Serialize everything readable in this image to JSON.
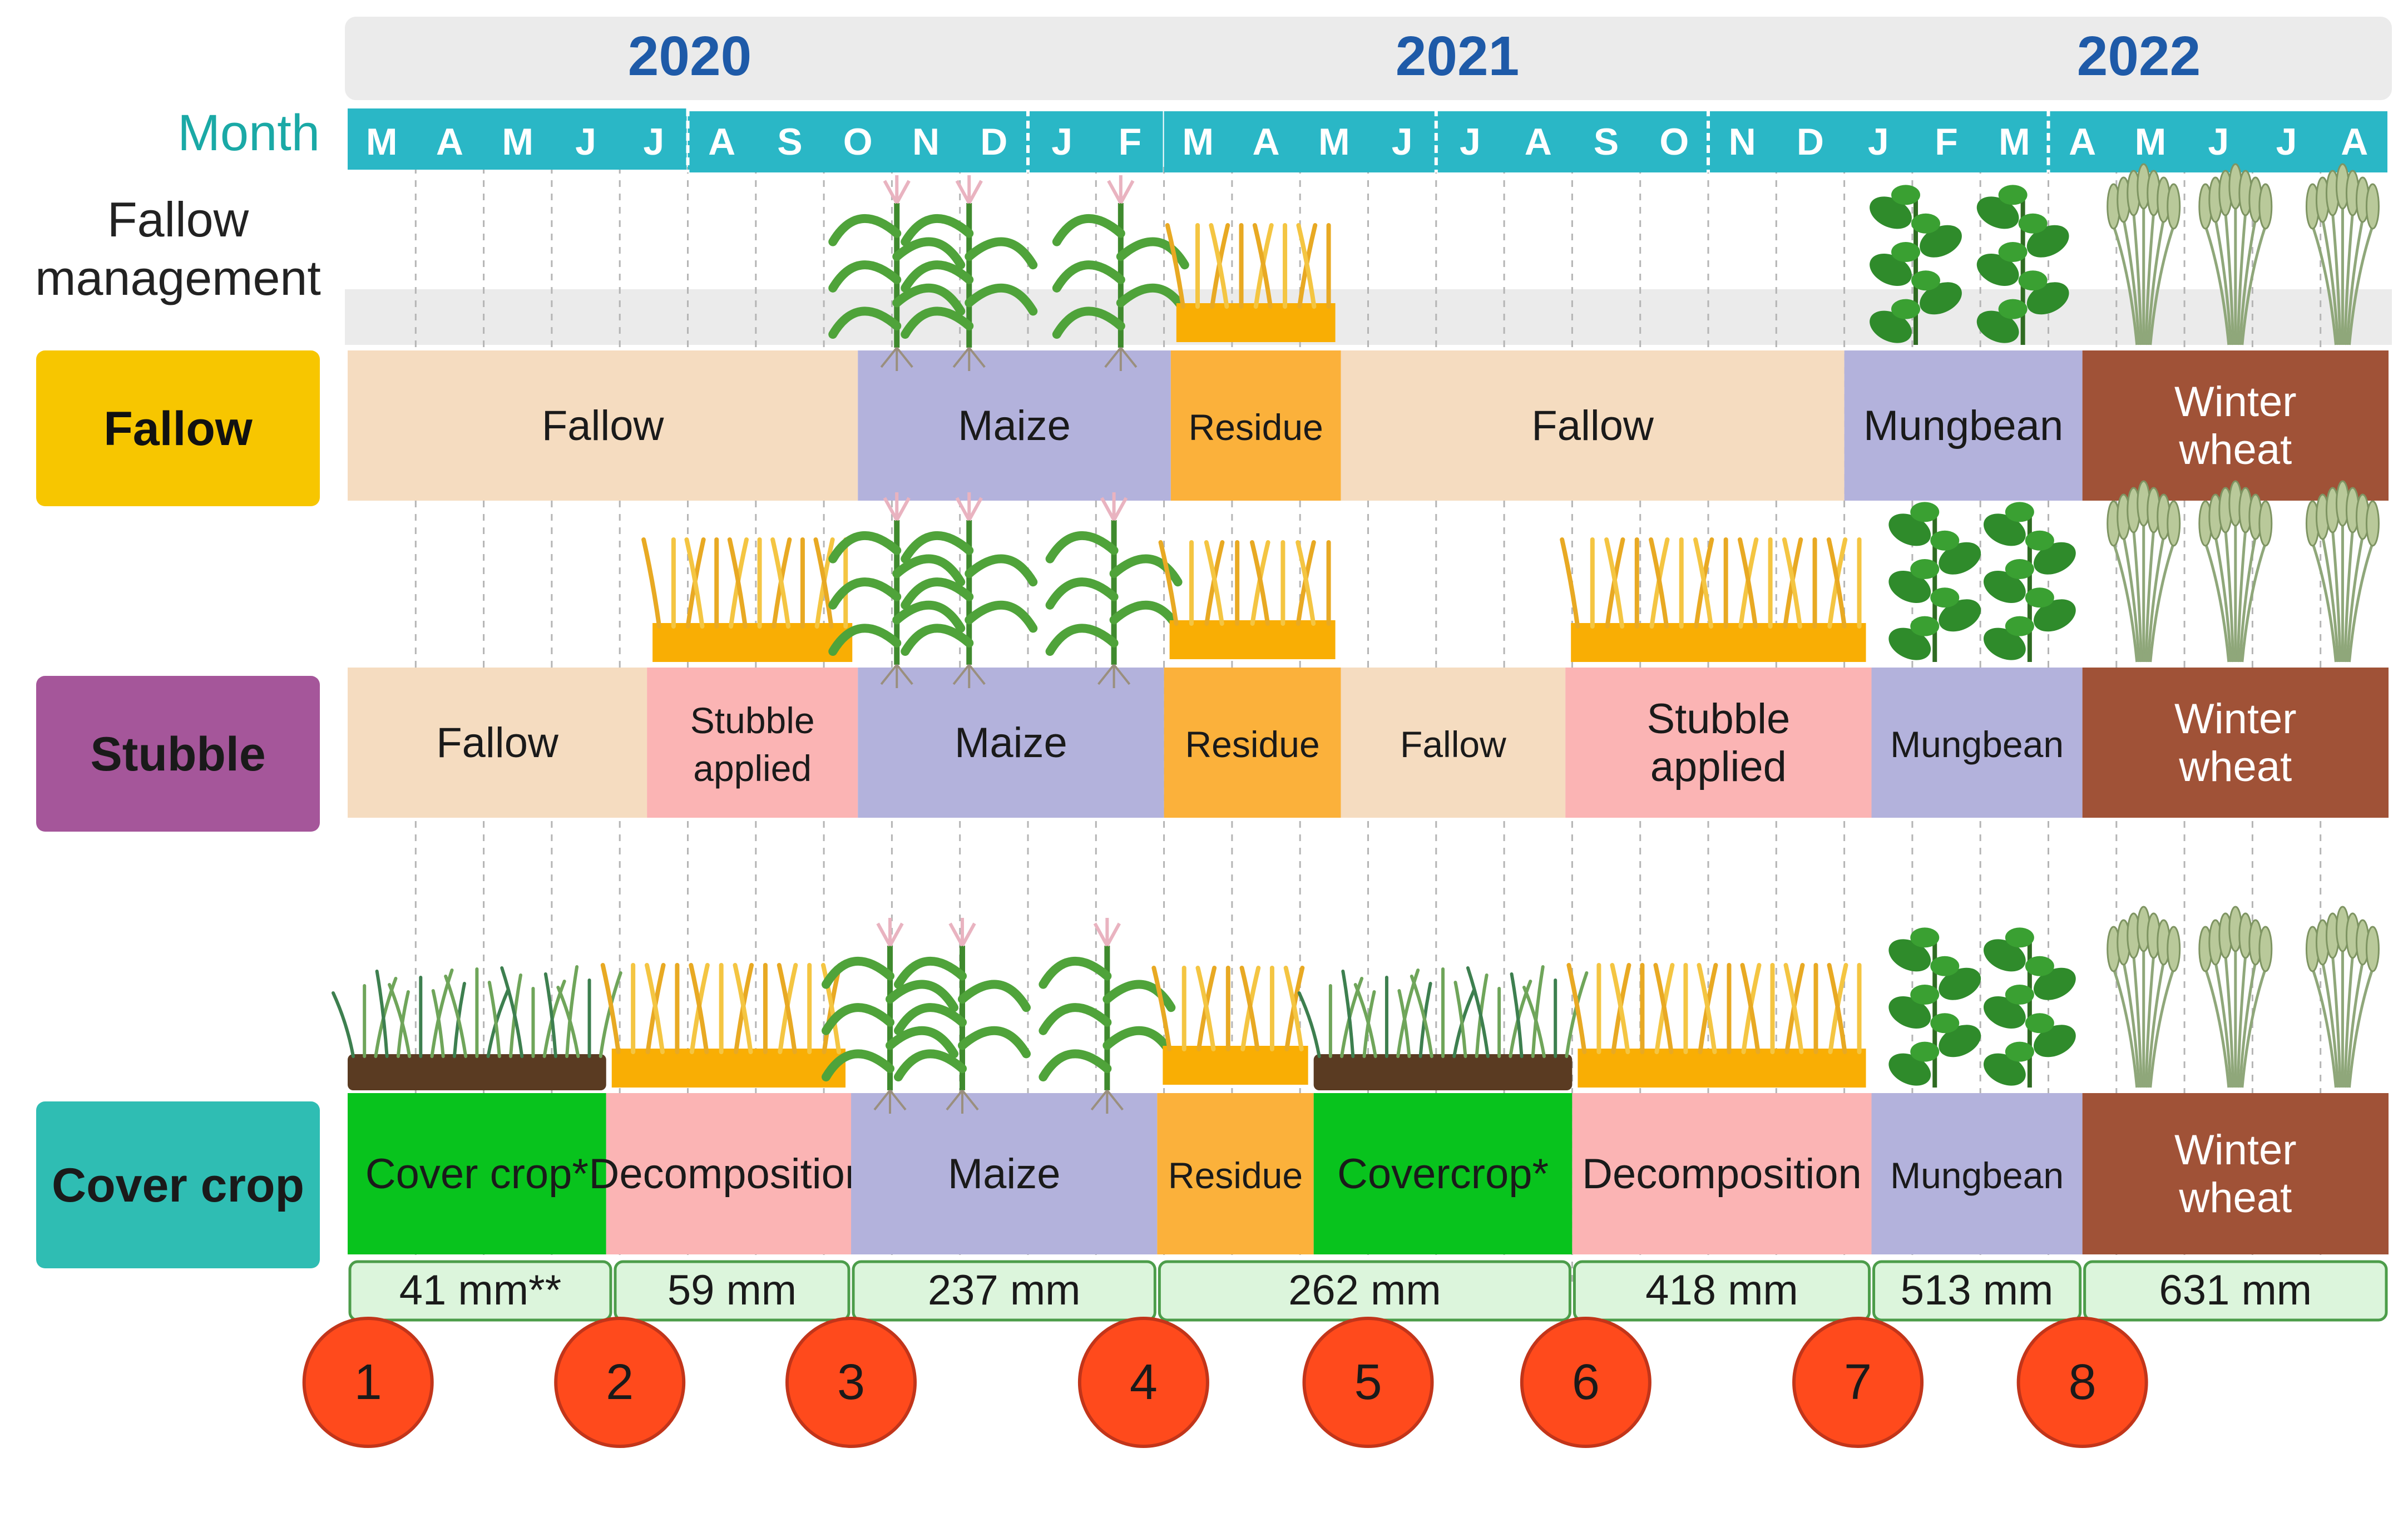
{
  "years": [
    "2020",
    "2021",
    "2022"
  ],
  "month_heading": "Month",
  "management_heading": [
    "Fallow",
    "management"
  ],
  "months": [
    "M",
    "A",
    "M",
    "J",
    "J",
    "A",
    "S",
    "O",
    "N",
    "D",
    "J",
    "F",
    "M",
    "A",
    "M",
    "J",
    "J",
    "A",
    "S",
    "O",
    "N",
    "D",
    "J",
    "F",
    "M",
    "A",
    "M",
    "J",
    "J",
    "A"
  ],
  "treatments": [
    {
      "label": "Fallow",
      "label_color": "#f7c600",
      "phases": [
        {
          "lines": [
            "Fallow"
          ],
          "type": "fallow",
          "start": 0,
          "end": 7.5
        },
        {
          "lines": [
            "Maize"
          ],
          "type": "crop",
          "start": 7.5,
          "end": 12.1
        },
        {
          "lines": [
            "Residue"
          ],
          "type": "residue",
          "start": 12.1,
          "end": 14.6
        },
        {
          "lines": [
            "Fallow"
          ],
          "type": "fallow",
          "start": 14.6,
          "end": 22
        },
        {
          "lines": [
            "Mungbean"
          ],
          "type": "crop",
          "start": 22,
          "end": 25.5
        },
        {
          "lines": [
            "Winter",
            "wheat"
          ],
          "type": "wheat",
          "start": 25.5,
          "end": 30
        }
      ]
    },
    {
      "label": "Stubble",
      "label_color": "#a5569a",
      "phases": [
        {
          "lines": [
            "Fallow"
          ],
          "type": "fallow",
          "start": 0,
          "end": 4.4
        },
        {
          "lines": [
            "Stubble",
            "applied"
          ],
          "type": "decomp",
          "start": 4.4,
          "end": 7.5
        },
        {
          "lines": [
            "Maize"
          ],
          "type": "crop",
          "start": 7.5,
          "end": 12
        },
        {
          "lines": [
            "Residue"
          ],
          "type": "residue",
          "start": 12,
          "end": 14.6
        },
        {
          "lines": [
            "Fallow"
          ],
          "type": "fallow",
          "start": 14.6,
          "end": 17.9
        },
        {
          "lines": [
            "Stubble",
            "applied"
          ],
          "type": "decomp",
          "start": 17.9,
          "end": 22.4
        },
        {
          "lines": [
            "Mungbean"
          ],
          "type": "crop",
          "start": 22.4,
          "end": 25.5
        },
        {
          "lines": [
            "Winter",
            "wheat"
          ],
          "type": "wheat",
          "start": 25.5,
          "end": 30
        }
      ]
    },
    {
      "label": "Cover crop",
      "label_color": "#2fbdb3",
      "phases": [
        {
          "lines": [
            "Cover crop*"
          ],
          "type": "cover",
          "start": 0,
          "end": 3.8
        },
        {
          "lines": [
            "Decomposition"
          ],
          "type": "decomp",
          "start": 3.8,
          "end": 7.4
        },
        {
          "lines": [
            "Maize"
          ],
          "type": "crop",
          "start": 7.4,
          "end": 11.9
        },
        {
          "lines": [
            "Residue"
          ],
          "type": "residue",
          "start": 11.9,
          "end": 14.2
        },
        {
          "lines": [
            "Covercrop*"
          ],
          "type": "cover",
          "start": 14.2,
          "end": 18
        },
        {
          "lines": [
            "Decomposition"
          ],
          "type": "decomp",
          "start": 18,
          "end": 22.4
        },
        {
          "lines": [
            "Mungbean"
          ],
          "type": "crop",
          "start": 22.4,
          "end": 25.5
        },
        {
          "lines": [
            "Winter",
            "wheat"
          ],
          "type": "wheat",
          "start": 25.5,
          "end": 30
        }
      ]
    }
  ],
  "rainfall": [
    {
      "label": "41 mm**",
      "start": 0,
      "end": 3.9
    },
    {
      "label": "59 mm",
      "start": 3.9,
      "end": 7.4
    },
    {
      "label": "237 mm",
      "start": 7.4,
      "end": 11.9
    },
    {
      "label": "262 mm",
      "start": 11.9,
      "end": 18
    },
    {
      "label": "418 mm",
      "start": 18,
      "end": 22.4
    },
    {
      "label": "513 mm",
      "start": 22.4,
      "end": 25.5
    },
    {
      "label": "631 mm",
      "start": 25.5,
      "end": 30
    }
  ],
  "sampling_points": [
    {
      "label": "1",
      "month": 0.3
    },
    {
      "label": "2",
      "month": 4
    },
    {
      "label": "3",
      "month": 7.4
    },
    {
      "label": "4",
      "month": 11.7
    },
    {
      "label": "5",
      "month": 15
    },
    {
      "label": "6",
      "month": 18.2
    },
    {
      "label": "7",
      "month": 22.2
    },
    {
      "label": "8",
      "month": 25.5
    }
  ],
  "colors": {
    "year_band": "#ebebeb",
    "year_text": "#1e5aa8",
    "month_band": "#2ab7c6",
    "month_heading": "#1aa9a6",
    "fallow": "#f5dcc0",
    "crop": "#b3b2dc",
    "residue": "#fbb13b",
    "decomp": "#fbb4b4",
    "wheat": "#a05237",
    "cover": "#08c31d",
    "rain_fill": "#dcf5dc",
    "rain_stroke": "#4c9d4a",
    "sample_fill": "#ff4a1c",
    "sample_stroke": "#c2351a"
  }
}
